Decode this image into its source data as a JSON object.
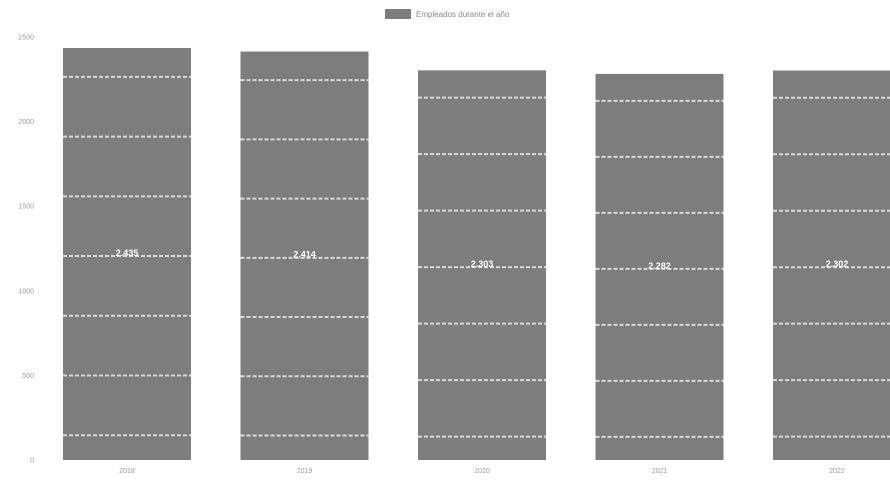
{
  "chart_data": {
    "type": "bar",
    "categories": [
      "2018",
      "2019",
      "2020",
      "2021",
      "2022"
    ],
    "series": [
      {
        "name": "Empleados durante el año",
        "values": [
          2435,
          2414,
          2303,
          2282,
          2302
        ],
        "labels": [
          "2.435",
          "2.414",
          "2.303",
          "2.282",
          "2.302"
        ]
      }
    ],
    "y_ticks": [
      "0",
      "500",
      "1000",
      "1500",
      "2000",
      "2500"
    ],
    "ylim": [
      0,
      2500
    ],
    "legend_position": "top-center",
    "grid": false,
    "bar_color": "#7d7d7d",
    "bar_stripe_color": "#d9d9d9"
  }
}
